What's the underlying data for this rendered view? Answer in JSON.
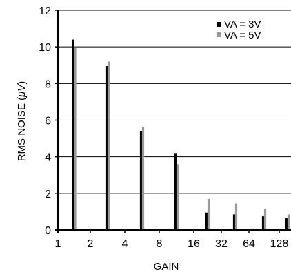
{
  "chart_data": {
    "type": "bar",
    "xlabel": "GAIN",
    "ylabel": "RMS NOISE (",
    "ylabel_symbol": "μV",
    "ylabel_close": ")",
    "categories": [
      "1",
      "2",
      "4",
      "8",
      "16",
      "32",
      "64",
      "128"
    ],
    "y_ticks": [
      "0",
      "2",
      "4",
      "6",
      "8",
      "10",
      "12"
    ],
    "ylim": [
      0,
      12
    ],
    "grid": true,
    "legend_position": "top-right",
    "series": [
      {
        "name": "VA = 3V",
        "color": "#000000",
        "values": [
          10.4,
          8.95,
          5.4,
          4.2,
          0.95,
          0.85,
          0.75,
          0.65
        ]
      },
      {
        "name": "VA = 5V",
        "color": "#999999",
        "values": [
          9.95,
          9.2,
          5.65,
          3.6,
          1.7,
          1.45,
          1.15,
          0.85
        ]
      }
    ]
  }
}
